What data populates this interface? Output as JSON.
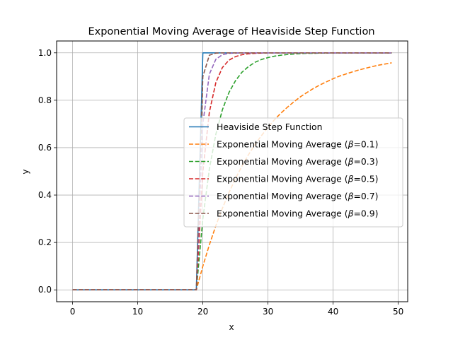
{
  "chart_data": {
    "type": "line",
    "title": "Exponential Moving Average of Heaviside Step Function",
    "xlabel": "x",
    "ylabel": "y",
    "xlim": [
      -2.45,
      51.45
    ],
    "ylim": [
      -0.05,
      1.05
    ],
    "xticks": [
      0,
      10,
      20,
      30,
      40,
      50
    ],
    "yticks": [
      0.0,
      0.2,
      0.4,
      0.6,
      0.8,
      1.0
    ],
    "xtick_labels": [
      "0",
      "10",
      "20",
      "30",
      "40",
      "50"
    ],
    "ytick_labels": [
      "0.0",
      "0.2",
      "0.4",
      "0.6",
      "0.8",
      "1.0"
    ],
    "grid": true,
    "legend_position": "center-right",
    "x": [
      0,
      1,
      2,
      3,
      4,
      5,
      6,
      7,
      8,
      9,
      10,
      11,
      12,
      13,
      14,
      15,
      16,
      17,
      18,
      19,
      20,
      21,
      22,
      23,
      24,
      25,
      26,
      27,
      28,
      29,
      30,
      31,
      32,
      33,
      34,
      35,
      36,
      37,
      38,
      39,
      40,
      41,
      42,
      43,
      44,
      45,
      46,
      47,
      48,
      49
    ],
    "series": [
      {
        "name": "Heaviside Step Function",
        "beta": null,
        "color": "#1f77b4",
        "dash": "solid",
        "values": [
          0,
          0,
          0,
          0,
          0,
          0,
          0,
          0,
          0,
          0,
          0,
          0,
          0,
          0,
          0,
          0,
          0,
          0,
          0,
          0,
          1,
          1,
          1,
          1,
          1,
          1,
          1,
          1,
          1,
          1,
          1,
          1,
          1,
          1,
          1,
          1,
          1,
          1,
          1,
          1,
          1,
          1,
          1,
          1,
          1,
          1,
          1,
          1,
          1,
          1
        ]
      },
      {
        "name": "Exponential Moving Average (",
        "beta": "0.1",
        "color": "#ff7f0e",
        "dash": "dashed",
        "values": [
          0,
          0,
          0,
          0,
          0,
          0,
          0,
          0,
          0,
          0,
          0,
          0,
          0,
          0,
          0,
          0,
          0,
          0,
          0,
          0,
          0.1,
          0.19,
          0.271,
          0.344,
          0.41,
          0.469,
          0.522,
          0.57,
          0.613,
          0.651,
          0.686,
          0.718,
          0.746,
          0.771,
          0.794,
          0.815,
          0.833,
          0.85,
          0.865,
          0.878,
          0.891,
          0.902,
          0.911,
          0.92,
          0.928,
          0.935,
          0.942,
          0.948,
          0.953,
          0.958
        ]
      },
      {
        "name": "Exponential Moving Average (",
        "beta": "0.3",
        "color": "#2ca02c",
        "dash": "dashed",
        "values": [
          0,
          0,
          0,
          0,
          0,
          0,
          0,
          0,
          0,
          0,
          0,
          0,
          0,
          0,
          0,
          0,
          0,
          0,
          0,
          0,
          0.3,
          0.51,
          0.657,
          0.76,
          0.832,
          0.882,
          0.918,
          0.942,
          0.96,
          0.972,
          0.98,
          0.986,
          0.99,
          0.993,
          0.995,
          0.997,
          0.998,
          0.998,
          0.999,
          0.999,
          1.0,
          1.0,
          1.0,
          1.0,
          1.0,
          1.0,
          1.0,
          1.0,
          1.0,
          1.0
        ]
      },
      {
        "name": "Exponential Moving Average (",
        "beta": "0.5",
        "color": "#d62728",
        "dash": "dashed",
        "values": [
          0,
          0,
          0,
          0,
          0,
          0,
          0,
          0,
          0,
          0,
          0,
          0,
          0,
          0,
          0,
          0,
          0,
          0,
          0,
          0,
          0.5,
          0.75,
          0.875,
          0.938,
          0.969,
          0.984,
          0.992,
          0.996,
          0.998,
          0.999,
          1.0,
          1.0,
          1.0,
          1.0,
          1.0,
          1.0,
          1.0,
          1.0,
          1.0,
          1.0,
          1.0,
          1.0,
          1.0,
          1.0,
          1.0,
          1.0,
          1.0,
          1.0,
          1.0,
          1.0
        ]
      },
      {
        "name": "Exponential Moving Average (",
        "beta": "0.7",
        "color": "#9467bd",
        "dash": "dashed",
        "values": [
          0,
          0,
          0,
          0,
          0,
          0,
          0,
          0,
          0,
          0,
          0,
          0,
          0,
          0,
          0,
          0,
          0,
          0,
          0,
          0,
          0.7,
          0.91,
          0.973,
          0.992,
          0.998,
          0.999,
          1.0,
          1.0,
          1.0,
          1.0,
          1.0,
          1.0,
          1.0,
          1.0,
          1.0,
          1.0,
          1.0,
          1.0,
          1.0,
          1.0,
          1.0,
          1.0,
          1.0,
          1.0,
          1.0,
          1.0,
          1.0,
          1.0,
          1.0,
          1.0
        ]
      },
      {
        "name": "Exponential Moving Average (",
        "beta": "0.9",
        "color": "#8c564b",
        "dash": "dashed",
        "values": [
          0,
          0,
          0,
          0,
          0,
          0,
          0,
          0,
          0,
          0,
          0,
          0,
          0,
          0,
          0,
          0,
          0,
          0,
          0,
          0,
          0.9,
          0.99,
          0.999,
          1.0,
          1.0,
          1.0,
          1.0,
          1.0,
          1.0,
          1.0,
          1.0,
          1.0,
          1.0,
          1.0,
          1.0,
          1.0,
          1.0,
          1.0,
          1.0,
          1.0,
          1.0,
          1.0,
          1.0,
          1.0,
          1.0,
          1.0,
          1.0,
          1.0,
          1.0,
          1.0
        ]
      }
    ]
  }
}
